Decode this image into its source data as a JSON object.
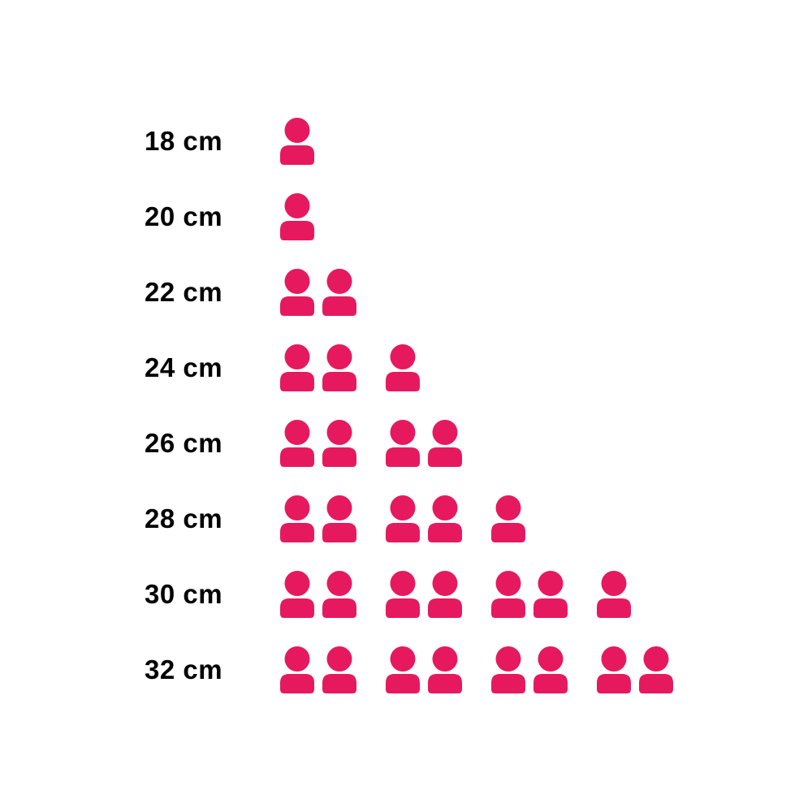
{
  "chart_data": {
    "type": "bar",
    "style": "pictogram",
    "orientation": "horizontal",
    "title": "",
    "xlabel": "",
    "ylabel": "",
    "unit_per_icon": 1,
    "icon": "person-icon",
    "icon_color": "#e6195e",
    "label_color": "#000000",
    "background_color": "#ffffff",
    "group_size": 2,
    "categories": [
      "18 cm",
      "20 cm",
      "22 cm",
      "24 cm",
      "26 cm",
      "28 cm",
      "30 cm",
      "32 cm"
    ],
    "values": [
      1,
      1,
      2,
      3,
      4,
      5,
      7,
      8
    ],
    "legend": "none",
    "grid": false,
    "axes_visible": false
  }
}
